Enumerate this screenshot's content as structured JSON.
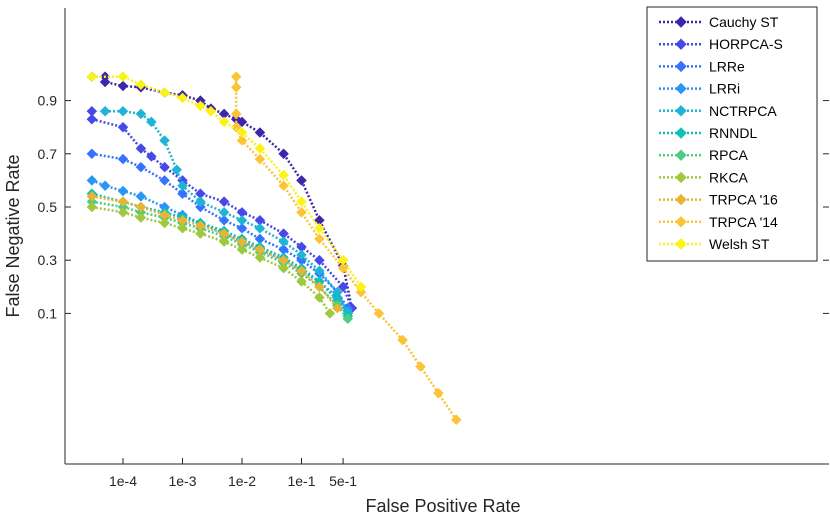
{
  "chart_data": {
    "type": "line",
    "title": "",
    "xlabel": "False Positive Rate",
    "ylabel": "False Negative Rate",
    "x_ticks": [
      {
        "value": 0.0001,
        "label": "1e-4"
      },
      {
        "value": 0.001,
        "label": "1e-3"
      },
      {
        "value": 0.01,
        "label": "1e-2"
      },
      {
        "value": 0.1,
        "label": "1e-1"
      },
      {
        "value": 0.5,
        "label": "5e-1"
      }
    ],
    "y_ticks": [
      {
        "value": 0.9,
        "label": "0.9"
      },
      {
        "value": 0.7,
        "label": "0.7"
      },
      {
        "value": 0.5,
        "label": "0.5"
      },
      {
        "value": 0.3,
        "label": "0.3"
      },
      {
        "value": 0.1,
        "label": "0.1"
      }
    ],
    "legend_position": "top-right",
    "series": [
      {
        "name": "Cauchy ST",
        "color": "#3e26a8",
        "x": [
          3e-05,
          5e-05,
          5e-05,
          0.0001,
          0.0002,
          0.0005,
          0.001,
          0.002,
          0.003,
          0.005,
          0.008,
          0.01,
          0.02,
          0.05,
          0.1,
          0.2,
          0.5,
          0.7
        ],
        "y": [
          0.99,
          0.99,
          0.97,
          0.955,
          0.95,
          0.93,
          0.92,
          0.9,
          0.87,
          0.85,
          0.83,
          0.82,
          0.78,
          0.7,
          0.6,
          0.45,
          0.28,
          0.12
        ]
      },
      {
        "name": "HORPCA-S",
        "color": "#4648e8",
        "x": [
          3e-05,
          3e-05,
          0.0001,
          0.0002,
          0.0003,
          0.0005,
          0.001,
          0.002,
          0.005,
          0.01,
          0.02,
          0.05,
          0.1,
          0.2,
          0.5,
          0.7
        ],
        "y": [
          0.86,
          0.83,
          0.8,
          0.72,
          0.69,
          0.65,
          0.6,
          0.55,
          0.52,
          0.48,
          0.45,
          0.4,
          0.35,
          0.3,
          0.2,
          0.12
        ]
      },
      {
        "name": "LRRe",
        "color": "#3772ff",
        "x": [
          3e-05,
          0.0001,
          0.0002,
          0.0005,
          0.001,
          0.002,
          0.005,
          0.01,
          0.02,
          0.05,
          0.1,
          0.2,
          0.4,
          0.6
        ],
        "y": [
          0.7,
          0.68,
          0.65,
          0.6,
          0.55,
          0.5,
          0.45,
          0.42,
          0.38,
          0.34,
          0.3,
          0.25,
          0.18,
          0.12
        ]
      },
      {
        "name": "LRRi",
        "color": "#2995f5",
        "x": [
          3e-05,
          5e-05,
          0.0001,
          0.0002,
          0.0005,
          0.001,
          0.002,
          0.005,
          0.01,
          0.02,
          0.05,
          0.1,
          0.2,
          0.4,
          0.6
        ],
        "y": [
          0.6,
          0.58,
          0.56,
          0.54,
          0.5,
          0.47,
          0.44,
          0.4,
          0.37,
          0.34,
          0.3,
          0.26,
          0.22,
          0.16,
          0.11
        ]
      },
      {
        "name": "NCTRPCA",
        "color": "#1eb4d6",
        "x": [
          5e-05,
          0.0001,
          0.0002,
          0.0003,
          0.0005,
          0.0008,
          0.001,
          0.002,
          0.005,
          0.01,
          0.02,
          0.05,
          0.1,
          0.2,
          0.4,
          0.6
        ],
        "y": [
          0.86,
          0.86,
          0.85,
          0.82,
          0.75,
          0.64,
          0.58,
          0.52,
          0.48,
          0.45,
          0.42,
          0.37,
          0.32,
          0.26,
          0.18,
          0.1
        ]
      },
      {
        "name": "RNNDL",
        "color": "#10c2b4",
        "x": [
          3e-05,
          0.0001,
          0.0002,
          0.0005,
          0.001,
          0.002,
          0.005,
          0.01,
          0.02,
          0.05,
          0.1,
          0.2,
          0.4,
          0.6
        ],
        "y": [
          0.55,
          0.52,
          0.5,
          0.48,
          0.46,
          0.44,
          0.41,
          0.38,
          0.35,
          0.31,
          0.27,
          0.22,
          0.15,
          0.09
        ]
      },
      {
        "name": "RPCA",
        "color": "#4fcb84",
        "x": [
          3e-05,
          0.0001,
          0.0002,
          0.0005,
          0.001,
          0.002,
          0.005,
          0.01,
          0.02,
          0.05,
          0.1,
          0.2,
          0.4,
          0.6
        ],
        "y": [
          0.52,
          0.5,
          0.48,
          0.46,
          0.44,
          0.42,
          0.39,
          0.36,
          0.33,
          0.29,
          0.25,
          0.2,
          0.13,
          0.08
        ]
      },
      {
        "name": "RKCA",
        "color": "#9ec93d",
        "x": [
          3e-05,
          0.0001,
          0.0002,
          0.0005,
          0.001,
          0.002,
          0.005,
          0.01,
          0.02,
          0.05,
          0.1,
          0.2,
          0.3
        ],
        "y": [
          0.5,
          0.48,
          0.46,
          0.44,
          0.42,
          0.4,
          0.37,
          0.34,
          0.31,
          0.27,
          0.22,
          0.16,
          0.1
        ]
      },
      {
        "name": "TRPCA '16",
        "color": "#e8b434",
        "x": [
          3e-05,
          0.0001,
          0.0002,
          0.0005,
          0.001,
          0.002,
          0.005,
          0.01,
          0.02,
          0.05,
          0.1,
          0.2,
          0.4
        ],
        "y": [
          0.54,
          0.52,
          0.5,
          0.47,
          0.45,
          0.43,
          0.4,
          0.37,
          0.34,
          0.3,
          0.26,
          0.2,
          0.12
        ]
      },
      {
        "name": "TRPCA '14",
        "color": "#fcc337",
        "x": [
          0.008,
          0.008,
          0.008,
          0.008,
          0.01,
          0.02,
          0.05,
          0.1,
          0.2,
          0.5,
          1,
          2,
          5,
          10,
          20,
          40
        ],
        "y": [
          0.99,
          0.95,
          0.85,
          0.8,
          0.75,
          0.68,
          0.58,
          0.48,
          0.38,
          0.27,
          0.18,
          0.1,
          0.0,
          -0.1,
          -0.2,
          -0.3
        ]
      },
      {
        "name": "Welsh ST",
        "color": "#faf314",
        "x": [
          3e-05,
          0.0001,
          0.0002,
          0.0005,
          0.001,
          0.002,
          0.003,
          0.005,
          0.01,
          0.02,
          0.05,
          0.1,
          0.2,
          0.5,
          1
        ],
        "y": [
          0.99,
          0.99,
          0.96,
          0.93,
          0.91,
          0.88,
          0.86,
          0.82,
          0.78,
          0.72,
          0.62,
          0.52,
          0.42,
          0.3,
          0.2
        ]
      }
    ]
  }
}
